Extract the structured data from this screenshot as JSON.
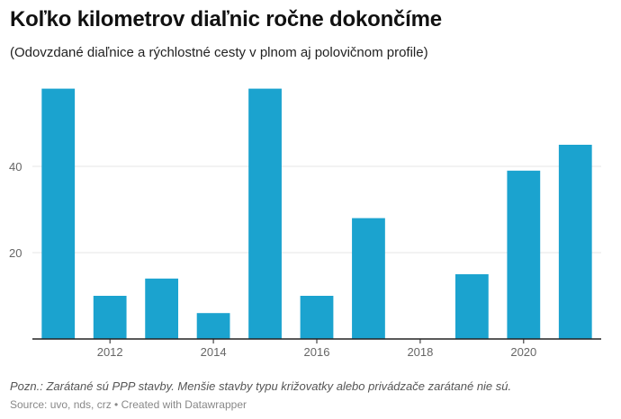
{
  "header": {
    "title": "Koľko kilometrov diaľnic ročne dokončíme",
    "subtitle": "(Odovzdané diaľnice a rýchlostné cesty v plnom aj polovičnom profile)"
  },
  "footer": {
    "note": "Pozn.: Zarátané sú PPP stavby. Menšie stavby typu križovatky alebo privádzače zarátané nie sú.",
    "source": "Source: uvo, nds, crz • Created with Datawrapper"
  },
  "chart_data": {
    "type": "bar",
    "title": "Koľko kilometrov diaľnic ročne dokončíme",
    "subtitle": "(Odovzdané diaľnice a rýchlostné cesty v plnom aj polovičnom profile)",
    "categories": [
      "2011",
      "2012",
      "2013",
      "2014",
      "2015",
      "2016",
      "2017",
      "2018",
      "2019",
      "2020",
      "2021"
    ],
    "values": [
      58,
      10,
      14,
      6,
      58,
      10,
      28,
      0,
      15,
      39,
      45
    ],
    "x_tick_labels": [
      "2012",
      "2014",
      "2016",
      "2018",
      "2020"
    ],
    "y_ticks": [
      20,
      40
    ],
    "ylim": [
      0,
      60
    ],
    "xlabel": "",
    "ylabel": "",
    "grid": true,
    "bar_color": "#1ba3cf",
    "grid_color": "#e6e6e6",
    "axis_color": "#222222"
  }
}
